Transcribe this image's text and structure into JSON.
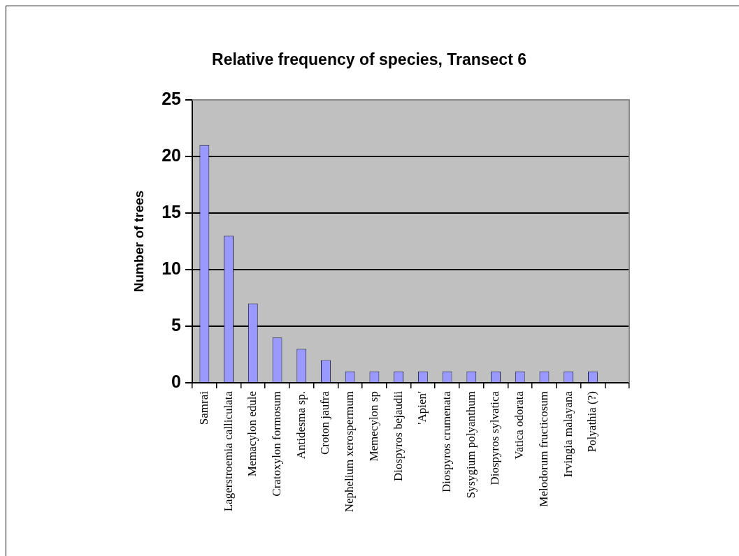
{
  "chart_data": {
    "type": "bar",
    "title": "Relative frequency of species, Transect 6",
    "ylabel": "Number of trees",
    "categories": [
      "Samrai",
      "Lagerstroemia calliculata",
      "Memacylon edule",
      "Cratoxylon formosum",
      "Antidesma sp.",
      "Croton jaufra",
      "Nephelium xerospermum",
      "Memecylon sp",
      "Diospyros bejaudii",
      "'Apien'",
      "Diospyros crumenata",
      "Sysygium polyanthum",
      "Diospyros sylvatica",
      "Vatica odorata",
      "Melodorum fructicosum",
      "Irvingia malayana",
      "Polyathia (?)",
      null
    ],
    "values": [
      21,
      13,
      7,
      4,
      3,
      2,
      1,
      1,
      1,
      1,
      1,
      1,
      1,
      1,
      1,
      1,
      1,
      null
    ],
    "color": "#9999ff",
    "ylim": [
      0,
      25
    ],
    "yticks": [
      0,
      5,
      10,
      15,
      20,
      25
    ],
    "grid": "y"
  }
}
